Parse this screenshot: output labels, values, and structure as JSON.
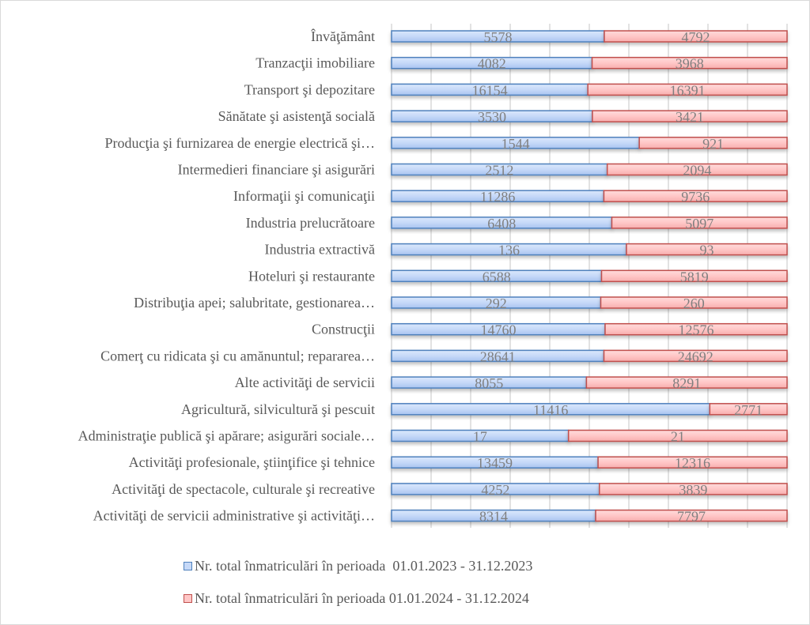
{
  "chart_data": {
    "type": "bar",
    "orientation": "horizontal",
    "stacking": "percent",
    "title": "",
    "xlabel": "",
    "ylabel": "",
    "xlim": [
      0,
      100
    ],
    "grid": true,
    "gridlines_percent": [
      0,
      10,
      20,
      30,
      40,
      50,
      60,
      70,
      80,
      90,
      100
    ],
    "legend_position": "bottom",
    "categories": [
      "Învăţământ",
      "Tranzacţii imobiliare",
      "Transport şi depozitare",
      "Sănătate şi asistenţă socială",
      "Producţia şi furnizarea de energie electrică şi…",
      "Intermedieri financiare şi asigurări",
      "Informaţii şi comunicaţii",
      "Industria prelucrătoare",
      "Industria extractivă",
      "Hoteluri şi restaurante",
      "Distribuţia apei; salubritate, gestionarea…",
      "Construcţii",
      "Comerţ cu ridicata şi cu amănuntul; repararea…",
      "Alte activităţi de servicii",
      "Agricultură, silvicultură şi pescuit",
      "Administraţie publică şi apărare; asigurări sociale…",
      "Activităţi profesionale, ştiinţifice şi tehnice",
      "Activităţi de spectacole, culturale şi recreative",
      "Activităţi de servicii administrative şi activităţi…"
    ],
    "series": [
      {
        "name": "Nr. total înmatriculări în perioada  01.01.2023 - 31.12.2023",
        "color": "#c6d9f8",
        "border": "#4f81bd",
        "values": [
          5578,
          4082,
          16154,
          3530,
          1544,
          2512,
          11286,
          6408,
          136,
          6588,
          292,
          14760,
          28641,
          8055,
          11416,
          17,
          13459,
          4252,
          8314
        ]
      },
      {
        "name": "Nr. total înmatriculări în perioada 01.01.2024 - 31.12.2024",
        "color": "#ffc7c7",
        "border": "#c0504d",
        "values": [
          4792,
          3968,
          16391,
          3421,
          921,
          2094,
          9736,
          5097,
          93,
          5819,
          260,
          12576,
          24692,
          8291,
          2771,
          21,
          12316,
          3839,
          7797
        ]
      }
    ]
  },
  "legend": [
    {
      "label": "Nr. total înmatriculări în perioada  01.01.2023 - 31.12.2023",
      "color": "#c6d9f8",
      "border": "#4f81bd"
    },
    {
      "label": "Nr. total înmatriculări în perioada 01.01.2024 - 31.12.2024",
      "color": "#ffc7c7",
      "border": "#c0504d"
    }
  ]
}
